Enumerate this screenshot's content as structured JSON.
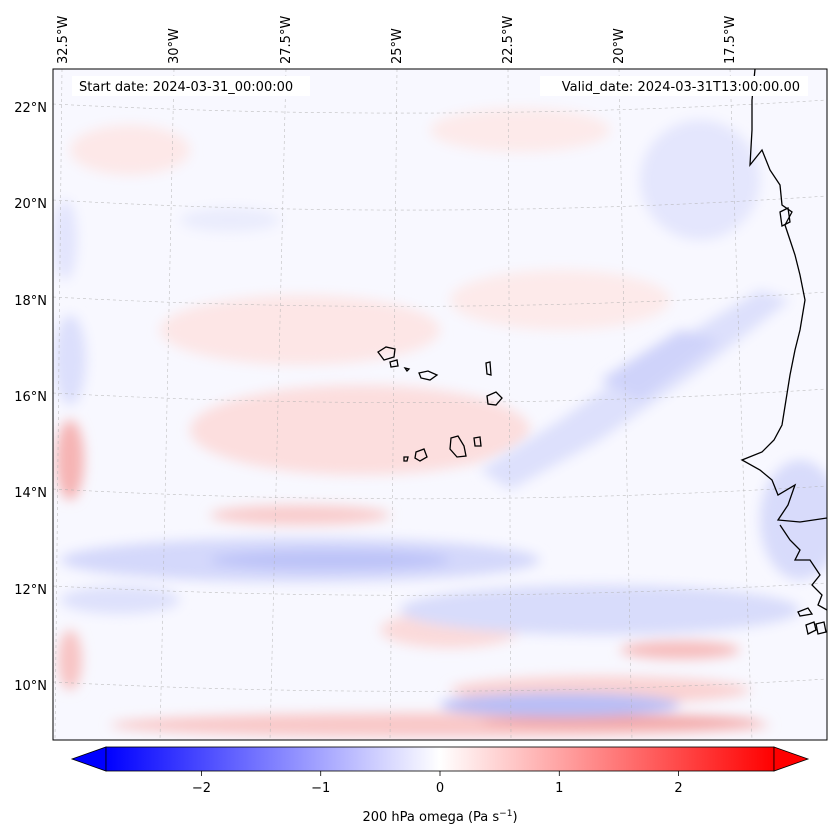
{
  "map": {
    "start_date": "Start date: 2024-03-31_00:00:00",
    "valid_date": "Valid_date: 2024-03-31T13:00:00.00",
    "lon_labels": [
      "32.5°W",
      "30°W",
      "27.5°W",
      "25°W",
      "22.5°W",
      "20°W",
      "17.5°W"
    ],
    "lat_labels": [
      "22°N",
      "20°N",
      "18°N",
      "16°N",
      "14°N",
      "12°N",
      "10°N"
    ],
    "colors": {
      "negative": "#0000ff",
      "neutral": "#ffffff",
      "positive": "#ff0000",
      "coast": "#000000"
    }
  },
  "colorbar": {
    "ticks": [
      "−2",
      "−1",
      "0",
      "1",
      "2"
    ],
    "tick_values": [
      -2,
      -1,
      0,
      1,
      2
    ],
    "range": [
      -2.8,
      2.8
    ],
    "label_text": "200 hPa omega (Pa s",
    "label_exp": "−1",
    "label_tail": ")"
  }
}
